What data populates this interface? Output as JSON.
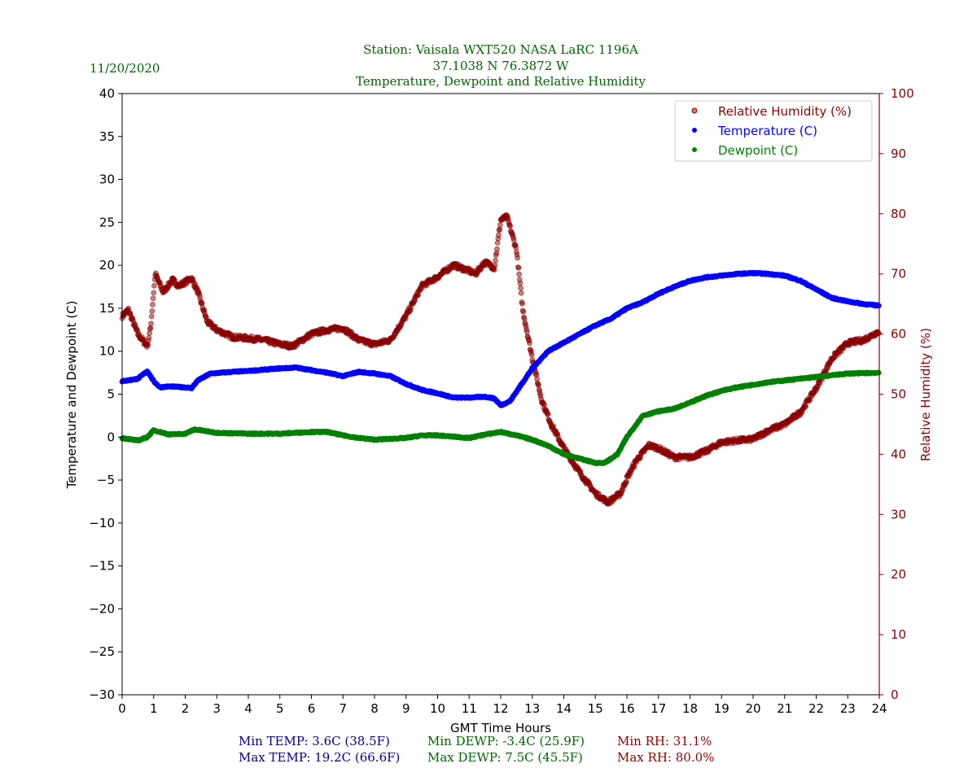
{
  "colors": {
    "title": "#006400",
    "temp": "#0000ff",
    "dewp": "#008000",
    "rh": "#8b0000",
    "stat_temp": "#00008b"
  },
  "date": "11/20/2020",
  "chart_data": {
    "type": "scatter",
    "title_lines": [
      "Station:  Vaisala WXT520  NASA LaRC 1196A",
      "37.1038 N 76.3872 W",
      "Temperature, Dewpoint and Relative Humidity"
    ],
    "xlabel": "GMT Time Hours",
    "ylabel": "Temperature and Dewpoint (C)",
    "y2label": "Relative Humidity (%)",
    "xlim": [
      0,
      24
    ],
    "ylim": [
      -30,
      40
    ],
    "y2lim": [
      0,
      100
    ],
    "xticks": [
      0,
      1,
      2,
      3,
      4,
      5,
      6,
      7,
      8,
      9,
      10,
      11,
      12,
      13,
      14,
      15,
      16,
      17,
      18,
      19,
      20,
      21,
      22,
      23,
      24
    ],
    "yticks": [
      -30,
      -25,
      -20,
      -15,
      -10,
      -5,
      0,
      5,
      10,
      15,
      20,
      25,
      30,
      35,
      40
    ],
    "y2ticks": [
      0,
      10,
      20,
      30,
      40,
      50,
      60,
      70,
      80,
      90,
      100
    ],
    "legend_position": "top-right",
    "series": [
      {
        "name": "Relative Humidity (%)",
        "axis": "right",
        "points": [
          [
            0,
            63
          ],
          [
            0.2,
            64
          ],
          [
            0.5,
            60
          ],
          [
            0.8,
            58
          ],
          [
            0.9,
            61
          ],
          [
            1.05,
            70
          ],
          [
            1.3,
            67
          ],
          [
            1.6,
            69
          ],
          [
            1.8,
            68
          ],
          [
            2.2,
            69.3
          ],
          [
            2.4,
            67
          ],
          [
            2.7,
            62
          ],
          [
            3,
            60.7
          ],
          [
            3.5,
            59.5
          ],
          [
            4,
            59.3
          ],
          [
            4.5,
            59
          ],
          [
            5,
            58.3
          ],
          [
            5.4,
            58
          ],
          [
            5.7,
            59
          ],
          [
            6,
            60
          ],
          [
            6.5,
            60.7
          ],
          [
            7,
            61
          ],
          [
            7.5,
            59
          ],
          [
            8,
            58.3
          ],
          [
            8.5,
            59
          ],
          [
            9,
            63
          ],
          [
            9.3,
            66
          ],
          [
            9.5,
            68
          ],
          [
            10,
            69.5
          ],
          [
            10.5,
            71.5
          ],
          [
            11,
            70.5
          ],
          [
            11.2,
            70
          ],
          [
            11.5,
            72
          ],
          [
            11.8,
            71
          ],
          [
            12,
            79
          ],
          [
            12.2,
            79.5
          ],
          [
            12.5,
            74
          ],
          [
            12.7,
            64
          ],
          [
            13,
            56
          ],
          [
            13.3,
            49
          ],
          [
            13.6,
            45
          ],
          [
            14,
            41
          ],
          [
            14.5,
            37
          ],
          [
            15,
            33.5
          ],
          [
            15.4,
            32
          ],
          [
            15.8,
            33.5
          ],
          [
            16,
            36
          ],
          [
            16.3,
            39
          ],
          [
            16.7,
            41.5
          ],
          [
            17,
            41
          ],
          [
            17.5,
            39.5
          ],
          [
            18,
            39.5
          ],
          [
            18.5,
            40.5
          ],
          [
            19,
            42
          ],
          [
            19.5,
            42.3
          ],
          [
            20,
            42.5
          ],
          [
            20.5,
            44
          ],
          [
            21,
            45
          ],
          [
            21.5,
            47
          ],
          [
            22,
            51
          ],
          [
            22.5,
            56
          ],
          [
            23,
            58.5
          ],
          [
            23.5,
            59
          ],
          [
            24,
            60.5
          ]
        ]
      },
      {
        "name": "Temperature (C)",
        "axis": "left",
        "points": [
          [
            0,
            6.5
          ],
          [
            0.5,
            6.8
          ],
          [
            0.8,
            7.7
          ],
          [
            1,
            6.5
          ],
          [
            1.2,
            5.8
          ],
          [
            1.5,
            5.9
          ],
          [
            2,
            5.8
          ],
          [
            2.2,
            5.7
          ],
          [
            2.4,
            6.6
          ],
          [
            2.8,
            7.4
          ],
          [
            3.5,
            7.6
          ],
          [
            4,
            7.7
          ],
          [
            5,
            8.0
          ],
          [
            5.5,
            8.1
          ],
          [
            6,
            7.8
          ],
          [
            6.5,
            7.5
          ],
          [
            7,
            7.1
          ],
          [
            7.5,
            7.6
          ],
          [
            8,
            7.4
          ],
          [
            8.5,
            7.1
          ],
          [
            9,
            6.2
          ],
          [
            9.5,
            5.5
          ],
          [
            10,
            5.1
          ],
          [
            10.5,
            4.6
          ],
          [
            11,
            4.6
          ],
          [
            11.5,
            4.7
          ],
          [
            11.8,
            4.5
          ],
          [
            12,
            3.7
          ],
          [
            12.3,
            4.2
          ],
          [
            12.5,
            5.3
          ],
          [
            13,
            8.0
          ],
          [
            13.5,
            10.0
          ],
          [
            14,
            11.0
          ],
          [
            14.5,
            12.0
          ],
          [
            15,
            13.0
          ],
          [
            15.5,
            13.8
          ],
          [
            16,
            15.0
          ],
          [
            16.5,
            15.7
          ],
          [
            17,
            16.7
          ],
          [
            17.5,
            17.5
          ],
          [
            18,
            18.2
          ],
          [
            18.5,
            18.6
          ],
          [
            19,
            18.8
          ],
          [
            19.5,
            19.0
          ],
          [
            20,
            19.1
          ],
          [
            20.5,
            19.0
          ],
          [
            21,
            18.8
          ],
          [
            21.5,
            18.2
          ],
          [
            22,
            17.2
          ],
          [
            22.5,
            16.2
          ],
          [
            23,
            15.8
          ],
          [
            23.5,
            15.5
          ],
          [
            24,
            15.3
          ]
        ]
      },
      {
        "name": "Dewpoint (C)",
        "axis": "left",
        "points": [
          [
            0,
            -0.1
          ],
          [
            0.5,
            -0.4
          ],
          [
            0.8,
            0
          ],
          [
            1,
            0.8
          ],
          [
            1.5,
            0.3
          ],
          [
            2,
            0.4
          ],
          [
            2.3,
            0.9
          ],
          [
            3,
            0.5
          ],
          [
            4,
            0.4
          ],
          [
            5,
            0.4
          ],
          [
            6,
            0.6
          ],
          [
            6.5,
            0.6
          ],
          [
            7,
            0.2
          ],
          [
            7.5,
            -0.1
          ],
          [
            8,
            -0.3
          ],
          [
            9,
            -0.1
          ],
          [
            9.5,
            0.2
          ],
          [
            10,
            0.2
          ],
          [
            11,
            -0.1
          ],
          [
            11.5,
            0.3
          ],
          [
            12,
            0.6
          ],
          [
            12.5,
            0.2
          ],
          [
            13,
            -0.3
          ],
          [
            13.5,
            -1.0
          ],
          [
            14,
            -2.0
          ],
          [
            14.5,
            -2.5
          ],
          [
            15,
            -3.0
          ],
          [
            15.3,
            -3.0
          ],
          [
            15.7,
            -2.0
          ],
          [
            16,
            0.0
          ],
          [
            16.5,
            2.5
          ],
          [
            17,
            3.0
          ],
          [
            17.5,
            3.3
          ],
          [
            18,
            4.0
          ],
          [
            18.5,
            4.8
          ],
          [
            19,
            5.4
          ],
          [
            19.5,
            5.8
          ],
          [
            20,
            6.1
          ],
          [
            20.5,
            6.4
          ],
          [
            21,
            6.6
          ],
          [
            21.5,
            6.8
          ],
          [
            22,
            7.0
          ],
          [
            22.5,
            7.2
          ],
          [
            23,
            7.4
          ],
          [
            24,
            7.5
          ]
        ]
      }
    ]
  },
  "stats": {
    "min_temp": "Min TEMP: 3.6C (38.5F)",
    "max_temp": "Max TEMP: 19.2C (66.6F)",
    "min_dewp": "Min DEWP: -3.4C (25.9F)",
    "max_dewp": "Max DEWP: 7.5C (45.5F)",
    "min_rh": "Min RH: 31.1%",
    "max_rh": "Max RH: 80.0%"
  }
}
